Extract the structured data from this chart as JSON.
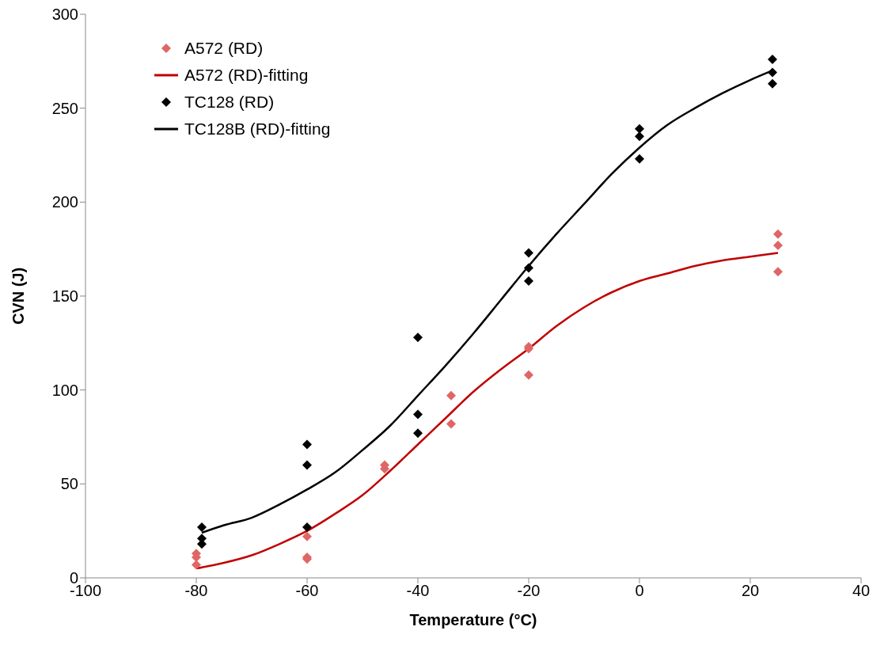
{
  "chart_data": {
    "type": "scatter",
    "xlabel": "Temperature (°C)",
    "ylabel": "CVN (J)",
    "xlim": [
      -100,
      40
    ],
    "xticks": [
      -100,
      -80,
      -60,
      -40,
      -20,
      0,
      20,
      40
    ],
    "ylim": [
      0,
      300
    ],
    "yticks": [
      0,
      50,
      100,
      150,
      200,
      250,
      300
    ],
    "grid": false,
    "legend": "top left",
    "marker": "diamond",
    "series": [
      {
        "name": "A572 (RD)",
        "color": "#e06666",
        "x": [
          -80,
          -80,
          -80,
          -60,
          -60,
          -60,
          -46,
          -46,
          -34,
          -34,
          -20,
          -20,
          -20,
          25,
          25,
          25
        ],
        "values": [
          13,
          11,
          7,
          22,
          11,
          10,
          60,
          58,
          97,
          82,
          123,
          122,
          108,
          183,
          177,
          163
        ]
      },
      {
        "name": "A572 (RD)-fitting",
        "type": "line",
        "color": "#c00000",
        "marker": "none",
        "x": [
          -80,
          -75,
          -70,
          -65,
          -60,
          -55,
          -50,
          -45,
          -40,
          -35,
          -30,
          -25,
          -20,
          -15,
          -10,
          -5,
          0,
          5,
          10,
          15,
          20,
          25
        ],
        "values": [
          5,
          8,
          12,
          18,
          25,
          34,
          44,
          57,
          71,
          85,
          99,
          111,
          122,
          134,
          144,
          152,
          158,
          162,
          166,
          169,
          171,
          173
        ]
      },
      {
        "name": "TC128 (RD)",
        "color": "#000000",
        "x": [
          -79,
          -79,
          -79,
          -60,
          -60,
          -60,
          -40,
          -40,
          -40,
          -20,
          -20,
          -20,
          0,
          0,
          0,
          24,
          24,
          24
        ],
        "values": [
          27,
          21,
          18,
          71,
          60,
          27,
          128,
          87,
          77,
          173,
          165,
          158,
          239,
          235,
          223,
          276,
          269,
          263
        ]
      },
      {
        "name": "TC128B (RD)-fitting",
        "type": "line",
        "color": "#000000",
        "marker": "none",
        "x": [
          -79,
          -75,
          -70,
          -65,
          -60,
          -55,
          -50,
          -45,
          -40,
          -35,
          -30,
          -25,
          -20,
          -15,
          -10,
          -5,
          0,
          5,
          10,
          15,
          20,
          24
        ],
        "values": [
          24,
          28,
          32,
          39,
          47,
          56,
          68,
          81,
          97,
          113,
          130,
          148,
          166,
          183,
          199,
          215,
          229,
          241,
          250,
          258,
          265,
          270
        ]
      }
    ]
  }
}
